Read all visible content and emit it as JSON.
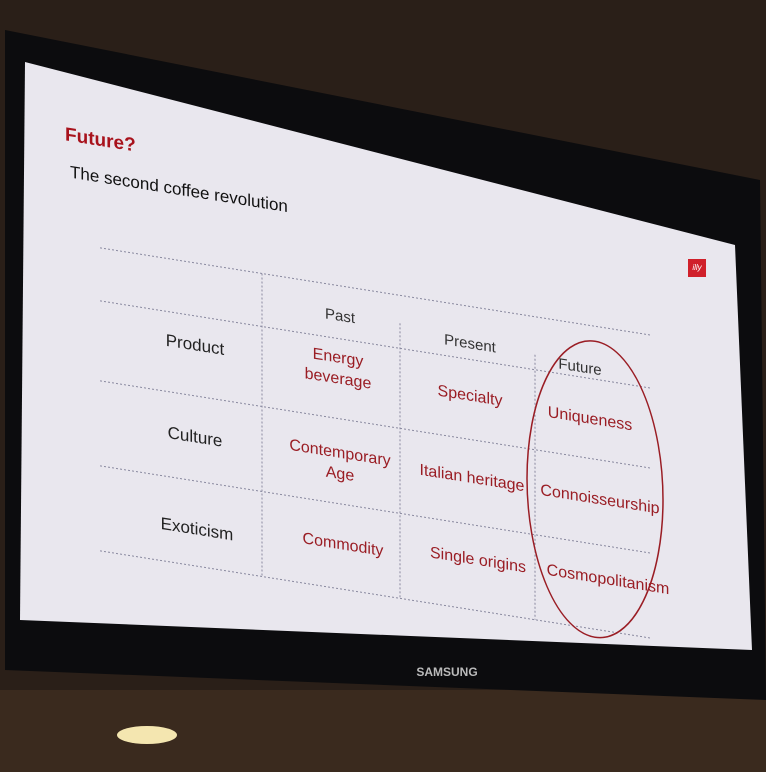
{
  "slide": {
    "title": "Future?",
    "subtitle": "The second coffee revolution",
    "logo": "illy",
    "table": {
      "columns": [
        "Past",
        "Present",
        "Future"
      ],
      "rows": [
        {
          "label": "Product",
          "cells": [
            "Energy beverage",
            "Specialty",
            "Uniqueness"
          ]
        },
        {
          "label": "Culture",
          "cells": [
            "Contemporary Age",
            "Italian heritage",
            "Connoisseurship"
          ]
        },
        {
          "label": "Exoticism",
          "cells": [
            "Commodity",
            "Single origins",
            "Cosmopolitanism"
          ]
        }
      ]
    }
  },
  "monitor": {
    "brand": "SAMSUNG"
  }
}
